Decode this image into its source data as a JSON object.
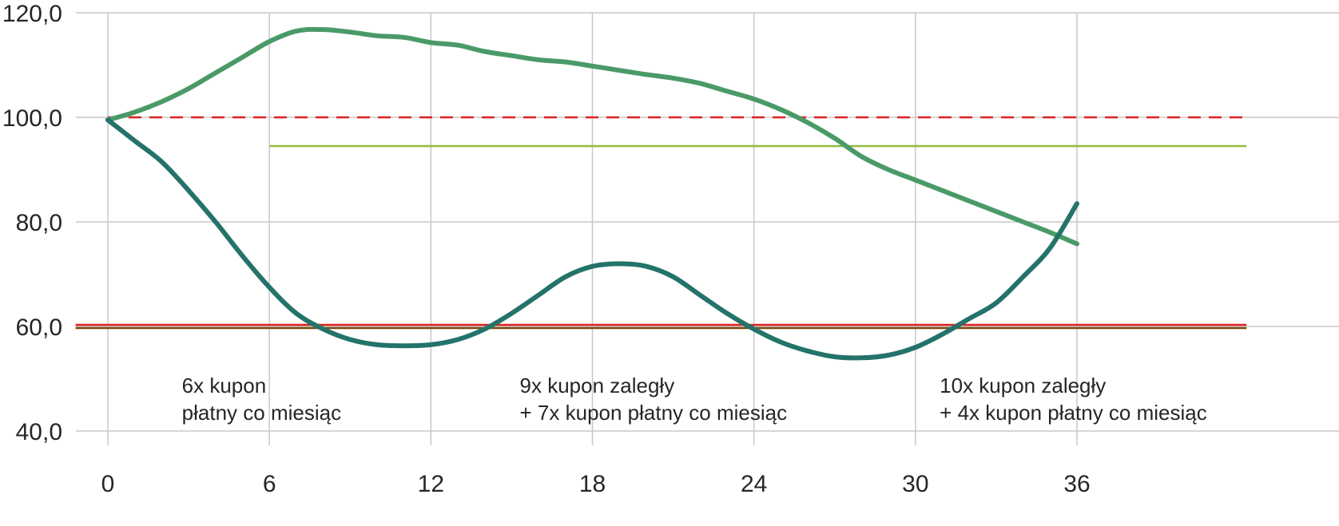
{
  "chart_data": {
    "type": "line",
    "title": "",
    "xlabel": "",
    "ylabel": "",
    "xlim": [
      0,
      42.3
    ],
    "ylim": [
      40,
      120
    ],
    "x_ticks": [
      0,
      6,
      12,
      18,
      24,
      30,
      36
    ],
    "x_tick_labels": [
      "0",
      "6",
      "12",
      "18",
      "24",
      "30",
      "36"
    ],
    "y_ticks": [
      40,
      60,
      80,
      100,
      120
    ],
    "y_tick_labels": [
      "40,0",
      "60,0",
      "80,0",
      "100,0",
      "120,0"
    ],
    "grid": true,
    "series": [
      {
        "color": "#4a9a68",
        "x": [
          0,
          1,
          2,
          3,
          4,
          5,
          6,
          7,
          8,
          9,
          10,
          11,
          12,
          13,
          14,
          15,
          16,
          17,
          18,
          19,
          20,
          21,
          22,
          23,
          24,
          25,
          26,
          27,
          28,
          29,
          30,
          31,
          32,
          33,
          34,
          35,
          36
        ],
        "y": [
          99.5,
          101.0,
          103.0,
          105.5,
          108.5,
          111.5,
          114.5,
          116.5,
          116.8,
          116.3,
          115.6,
          115.3,
          114.3,
          113.8,
          112.6,
          111.8,
          111.0,
          110.6,
          109.8,
          109.0,
          108.2,
          107.5,
          106.5,
          105.0,
          103.5,
          101.5,
          99.0,
          96.0,
          92.5,
          90.0,
          88.0,
          86.0,
          84.0,
          82.0,
          80.0,
          78.0,
          75.8
        ]
      },
      {
        "color": "#24736a",
        "x": [
          0,
          1,
          2,
          3,
          4,
          5,
          6,
          7,
          8,
          9,
          10,
          11,
          12,
          13,
          14,
          15,
          16,
          17,
          18,
          19,
          20,
          21,
          22,
          23,
          24,
          25,
          26,
          27,
          28,
          29,
          30,
          31,
          32,
          33,
          34,
          35,
          36
        ],
        "y": [
          99.5,
          95.5,
          91.5,
          86.0,
          80.0,
          73.5,
          67.5,
          62.5,
          59.5,
          57.5,
          56.5,
          56.3,
          56.5,
          57.5,
          59.5,
          62.5,
          66.0,
          69.5,
          71.5,
          72.0,
          71.5,
          69.5,
          66.0,
          62.5,
          59.5,
          57.0,
          55.3,
          54.2,
          54.0,
          54.5,
          56.0,
          58.5,
          61.5,
          64.5,
          69.5,
          75.0,
          83.5
        ]
      }
    ],
    "reference_lines": [
      {
        "y": 100.0,
        "color": "#e02020",
        "style": "dashed",
        "x_start": 0,
        "x_end": 42.3
      },
      {
        "y": 94.5,
        "color": "#8fbd3f",
        "style": "solid",
        "x_start": 6,
        "x_end": 42.3
      },
      {
        "y": 60.3,
        "color": "#e02020",
        "style": "solid",
        "x_start": -1.2,
        "x_end": 42.3
      },
      {
        "y": 59.7,
        "color": "#7a4a12",
        "style": "solid",
        "x_start": -1.2,
        "x_end": 42.3
      }
    ],
    "annotations": [
      {
        "x": 2.75,
        "lines": [
          "6x kupon",
          "płatny co miesiąc"
        ]
      },
      {
        "x": 15.3,
        "lines": [
          "9x kupon zaległy",
          "+ 7x kupon płatny co miesiąc"
        ]
      },
      {
        "x": 30.9,
        "lines": [
          "10x kupon zaległy",
          "+ 4x kupon płatny co miesiąc"
        ]
      }
    ],
    "colors": {
      "grid": "#c8c8c8",
      "text": "#262626"
    }
  }
}
